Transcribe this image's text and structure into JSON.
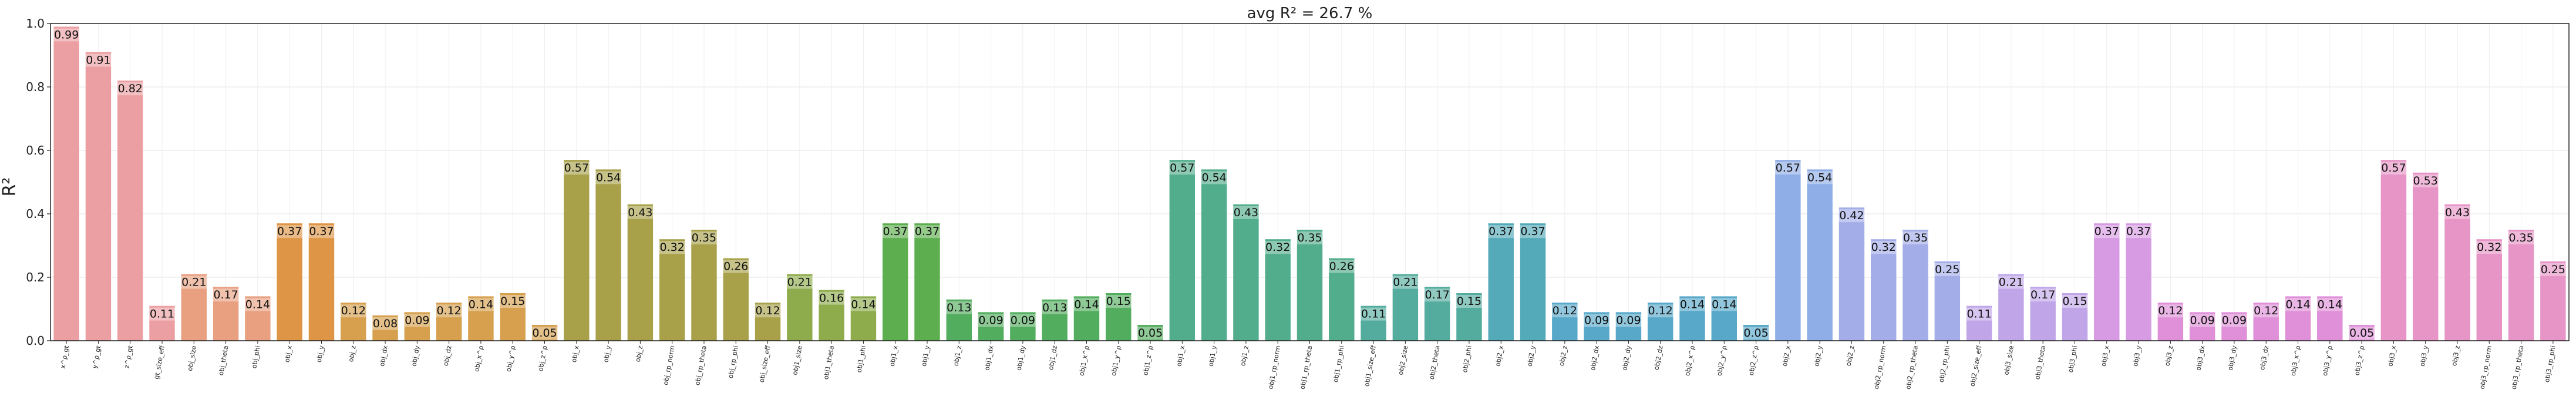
{
  "chart_data": {
    "type": "bar",
    "title": "avg R² = 26.7 %",
    "ylabel": "R²",
    "xlabel": "",
    "ylim": [
      0,
      1.0
    ],
    "yticks": [
      "0.0",
      "0.2",
      "0.4",
      "0.6",
      "0.8",
      "1.0"
    ],
    "grid": true,
    "categories": [
      "x^ρ_gt",
      "y^ρ_gt",
      "z^ρ_gt",
      "gt_size_eff",
      "obj_size",
      "obj_theta",
      "obj_phi",
      "obj_x",
      "obj_y",
      "obj_z",
      "obj_dx",
      "obj_dy",
      "obj_dz",
      "obj_x^ρ",
      "obj_y^ρ",
      "obj_z^ρ",
      "obj_x",
      "obj_y",
      "obj_z",
      "obj_rp_norm",
      "obj_rp_theta",
      "obj_rp_phi",
      "obj_size_eff",
      "obj1_size",
      "obj1_theta",
      "obj1_phi",
      "obj1_x",
      "obj1_y",
      "obj1_z",
      "obj1_dx",
      "obj1_dy",
      "obj1_dz",
      "obj1_x^ρ",
      "obj1_y^ρ",
      "obj1_z^ρ",
      "obj1_x",
      "obj1_y",
      "obj1_z",
      "obj1_rp_norm",
      "obj1_rp_theta",
      "obj1_rp_phi",
      "obj1_size_eff",
      "obj2_size",
      "obj2_theta",
      "obj2_phi",
      "obj2_x",
      "obj2_y",
      "obj2_z",
      "obj2_dx",
      "obj2_dy",
      "obj2_dz",
      "obj2_x^ρ",
      "obj2_y^ρ",
      "obj2_z^ρ",
      "obj2_x",
      "obj2_y",
      "obj2_z",
      "obj2_rp_norm",
      "obj2_rp_theta",
      "obj2_rp_phi",
      "obj2_size_eff",
      "obj3_size",
      "obj3_theta",
      "obj3_phi",
      "obj3_x",
      "obj3_y",
      "obj3_z",
      "obj3_dx",
      "obj3_dy",
      "obj3_dz",
      "obj3_x^ρ",
      "obj3_y^ρ",
      "obj3_z^ρ",
      "obj3_x",
      "obj3_y",
      "obj3_z",
      "obj3_rp_norm",
      "obj3_rp_theta",
      "obj3_rp_phi"
    ],
    "values": [
      0.99,
      0.91,
      0.82,
      0.11,
      0.21,
      0.17,
      0.14,
      0.37,
      0.37,
      0.12,
      0.08,
      0.09,
      0.12,
      0.14,
      0.15,
      0.05,
      0.57,
      0.54,
      0.43,
      0.32,
      0.35,
      0.26,
      0.12,
      0.21,
      0.16,
      0.14,
      0.37,
      0.37,
      0.13,
      0.09,
      0.09,
      0.13,
      0.14,
      0.15,
      0.05,
      0.57,
      0.54,
      0.43,
      0.32,
      0.35,
      0.26,
      0.11,
      0.21,
      0.17,
      0.15,
      0.37,
      0.37,
      0.12,
      0.09,
      0.09,
      0.12,
      0.14,
      0.14,
      0.05,
      0.57,
      0.54,
      0.42,
      0.32,
      0.35,
      0.25,
      0.11,
      0.21,
      0.17,
      0.15,
      0.37,
      0.37,
      0.12,
      0.09,
      0.09,
      0.12,
      0.14,
      0.14,
      0.05,
      0.57,
      0.53,
      0.43,
      0.32,
      0.35,
      0.25
    ],
    "data_labels": [
      "0.99",
      "0.91",
      "0.82",
      "0.11",
      "0.21",
      "0.17",
      "0.14",
      "0.37",
      "0.37",
      "0.12",
      "0.08",
      "0.09",
      "0.12",
      "0.14",
      "0.15",
      "0.05",
      "0.57",
      "0.54",
      "0.43",
      "0.32",
      "0.35",
      "0.26",
      "0.12",
      "0.21",
      "0.16",
      "0.14",
      "0.37",
      "0.37",
      "0.13",
      "0.09",
      "0.09",
      "0.13",
      "0.14",
      "0.15",
      "0.05",
      "0.57",
      "0.54",
      "0.43",
      "0.32",
      "0.35",
      "0.26",
      "0.11",
      "0.21",
      "0.17",
      "0.15",
      "0.37",
      "0.37",
      "0.12",
      "0.09",
      "0.09",
      "0.12",
      "0.14",
      "0.14",
      "0.05",
      "0.57",
      "0.54",
      "0.42",
      "0.32",
      "0.35",
      "0.25",
      "0.11",
      "0.21",
      "0.17",
      "0.15",
      "0.37",
      "0.37",
      "0.12",
      "0.09",
      "0.09",
      "0.12",
      "0.14",
      "0.14",
      "0.05",
      "0.57",
      "0.53",
      "0.43",
      "0.32",
      "0.35",
      "0.25"
    ],
    "colors": [
      "#ec9fa2",
      "#ec9fa2",
      "#ec9fa2",
      "#ec9fa2",
      "#e8a081",
      "#e8a081",
      "#e8a081",
      "#de9546",
      "#de9546",
      "#d6a04e",
      "#d6a04e",
      "#d6a04e",
      "#d6a04e",
      "#d6a04e",
      "#d6a04e",
      "#d6a04e",
      "#a8a14a",
      "#a8a14a",
      "#a8a14a",
      "#a8a14a",
      "#a8a14a",
      "#a8a14a",
      "#a8a14a",
      "#8eac4c",
      "#8eac4c",
      "#8eac4c",
      "#5cae4e",
      "#5cae4e",
      "#52ad5e",
      "#52ad5e",
      "#52ad5e",
      "#52ad5e",
      "#52ad5e",
      "#52ad5e",
      "#52ad5e",
      "#52ad8c",
      "#52ad8c",
      "#52ad8c",
      "#52ad8c",
      "#52ad8c",
      "#52ad8c",
      "#54ac9e",
      "#54ac9e",
      "#54ac9e",
      "#54ac9e",
      "#54aab8",
      "#54aab8",
      "#57a8c9",
      "#57a8c9",
      "#57a8c9",
      "#57a8c9",
      "#57a8c9",
      "#57a8c9",
      "#57a8c9",
      "#8fade6",
      "#8fade6",
      "#a3ade8",
      "#a3ade8",
      "#a3ade8",
      "#a3ade8",
      "#c0a6e8",
      "#c0a6e8",
      "#c0a6e8",
      "#c0a6e8",
      "#d79be3",
      "#d79be3",
      "#df90d8",
      "#df90d8",
      "#df90d8",
      "#df90d8",
      "#df90d8",
      "#df90d8",
      "#df90d8",
      "#e695c6",
      "#e695c6",
      "#e695c6",
      "#e695c6",
      "#e695c6",
      "#e695c6"
    ]
  }
}
